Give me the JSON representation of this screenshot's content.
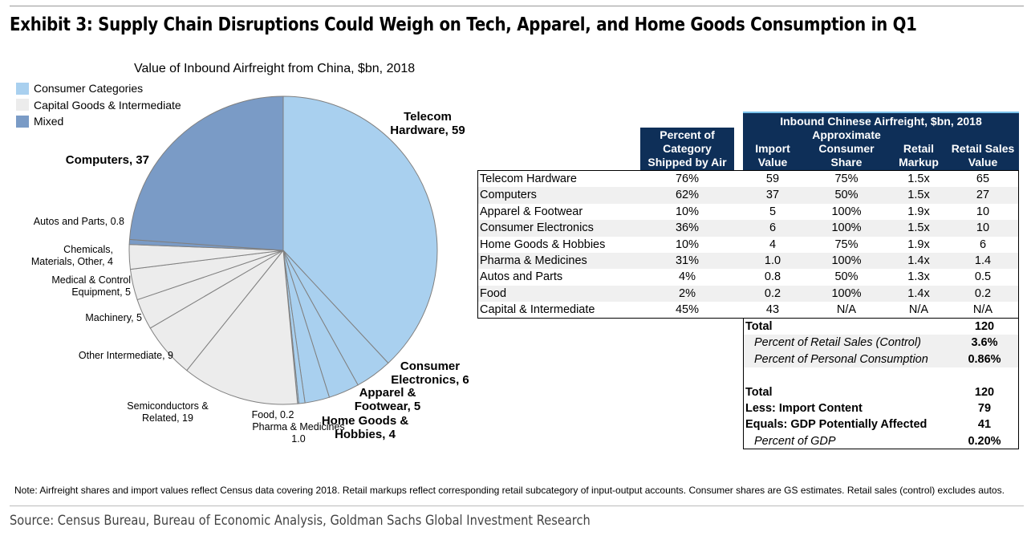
{
  "exhibit_title": "Exhibit 3: Supply Chain Disruptions Could Weigh on Tech, Apparel, and Home Goods Consumption in Q1",
  "chart_data": [
    {
      "type": "pie",
      "title": "Value of Inbound Airfreight from China, $bn, 2018",
      "legend_position": "top-left",
      "legend": [
        {
          "label": "Consumer Categories",
          "color": "#a9d0ef"
        },
        {
          "label": "Capital Goods & Intermediate",
          "color": "#ececec"
        },
        {
          "label": "Mixed",
          "color": "#7a9bc6"
        }
      ],
      "slices": [
        {
          "label": [
            "Telecom",
            "Hardware, 59"
          ],
          "value": 59,
          "group": "Consumer Categories",
          "color": "#a9d0ef",
          "bold": true
        },
        {
          "label": [
            "Consumer",
            "Electronics, 6"
          ],
          "value": 6,
          "group": "Consumer Categories",
          "color": "#a9d0ef",
          "bold": true
        },
        {
          "label": [
            "Apparel &",
            "Footwear, 5"
          ],
          "value": 5,
          "group": "Consumer Categories",
          "color": "#a9d0ef",
          "bold": true
        },
        {
          "label": [
            "Home Goods &",
            "Hobbies, 4"
          ],
          "value": 4,
          "group": "Consumer Categories",
          "color": "#a9d0ef",
          "bold": true
        },
        {
          "label": [
            "Pharma & Medicines",
            "1.0"
          ],
          "value": 1.0,
          "group": "Consumer Categories",
          "color": "#a9d0ef",
          "bold": false
        },
        {
          "label": [
            "Food, 0.2"
          ],
          "value": 0.2,
          "group": "Consumer Categories",
          "color": "#a9d0ef",
          "bold": false
        },
        {
          "label": [
            "Semiconductors &",
            "Related, 19"
          ],
          "value": 19,
          "group": "Capital Goods & Intermediate",
          "color": "#ececec",
          "bold": false
        },
        {
          "label": [
            "Other Intermediate, 9"
          ],
          "value": 9,
          "group": "Capital Goods & Intermediate",
          "color": "#ececec",
          "bold": false
        },
        {
          "label": [
            "Machinery, 5"
          ],
          "value": 5,
          "group": "Capital Goods & Intermediate",
          "color": "#ececec",
          "bold": false
        },
        {
          "label": [
            "Medical & Control",
            "Equipment, 5"
          ],
          "value": 5,
          "group": "Capital Goods & Intermediate",
          "color": "#ececec",
          "bold": false
        },
        {
          "label": [
            "Chemicals,",
            "Materials, Other, 4"
          ],
          "value": 4,
          "group": "Capital Goods & Intermediate",
          "color": "#ececec",
          "bold": false
        },
        {
          "label": [
            "Autos and Parts, 0.8"
          ],
          "value": 0.8,
          "group": "Mixed",
          "color": "#7a9bc6",
          "bold": false
        },
        {
          "label": [
            "Computers, 37"
          ],
          "value": 37,
          "group": "Mixed",
          "color": "#7a9bc6",
          "bold": true
        }
      ]
    },
    {
      "type": "table",
      "title": "Inbound Chinese Airfreight, $bn, 2018",
      "columns": [
        [
          "Percent of",
          "Category",
          "Shipped by Air"
        ],
        [
          "Import",
          "Value"
        ],
        [
          "Approximate",
          "Consumer",
          "Share"
        ],
        [
          "Retail",
          "Markup"
        ],
        [
          "Retail Sales",
          "Value"
        ]
      ],
      "rows": [
        {
          "category": "Telecom Hardware",
          "pct_air": "76%",
          "import_value": "59",
          "consumer_share": "75%",
          "retail_markup": "1.5x",
          "retail_sales": "65"
        },
        {
          "category": "Computers",
          "pct_air": "62%",
          "import_value": "37",
          "consumer_share": "50%",
          "retail_markup": "1.5x",
          "retail_sales": "27"
        },
        {
          "category": "Apparel & Footwear",
          "pct_air": "10%",
          "import_value": "5",
          "consumer_share": "100%",
          "retail_markup": "1.9x",
          "retail_sales": "10"
        },
        {
          "category": "Consumer Electronics",
          "pct_air": "36%",
          "import_value": "6",
          "consumer_share": "100%",
          "retail_markup": "1.5x",
          "retail_sales": "10"
        },
        {
          "category": "Home Goods & Hobbies",
          "pct_air": "10%",
          "import_value": "4",
          "consumer_share": "75%",
          "retail_markup": "1.9x",
          "retail_sales": "6"
        },
        {
          "category": "Pharma & Medicines",
          "pct_air": "31%",
          "import_value": "1.0",
          "consumer_share": "100%",
          "retail_markup": "1.4x",
          "retail_sales": "1.4"
        },
        {
          "category": "Autos and Parts",
          "pct_air": "4%",
          "import_value": "0.8",
          "consumer_share": "50%",
          "retail_markup": "1.3x",
          "retail_sales": "0.5"
        },
        {
          "category": "Food",
          "pct_air": "2%",
          "import_value": "0.2",
          "consumer_share": "100%",
          "retail_markup": "1.4x",
          "retail_sales": "0.2"
        },
        {
          "category": "Capital & Intermediate",
          "pct_air": "45%",
          "import_value": "43",
          "consumer_share": "N/A",
          "retail_markup": "N/A",
          "retail_sales": "N/A"
        }
      ],
      "summary": [
        {
          "label": "Total",
          "value": "120",
          "style": "bold"
        },
        {
          "label": "Percent of Retail Sales (Control)",
          "value": "3.6%",
          "style": "italic"
        },
        {
          "label": "Percent of Personal Consumption",
          "value": "0.86%",
          "style": "italic"
        },
        {
          "label": "",
          "value": "",
          "style": "blank"
        },
        {
          "label": "Total",
          "value": "120",
          "style": "bold"
        },
        {
          "label": "Less: Import Content",
          "value": "79",
          "style": "bold"
        },
        {
          "label": "Equals: GDP Potentially Affected",
          "value": "41",
          "style": "bold"
        },
        {
          "label": "Percent of GDP",
          "value": "0.20%",
          "style": "italic"
        }
      ]
    }
  ],
  "note": "Note: Airfreight shares and import values reflect Census data covering 2018.  Retail markups reflect corresponding retail subcategory of input-output accounts. Consumer shares are GS estimates. Retail sales (control) excludes autos.",
  "source": "Source: Census Bureau, Bureau of Economic Analysis, Goldman Sachs Global Investment Research"
}
